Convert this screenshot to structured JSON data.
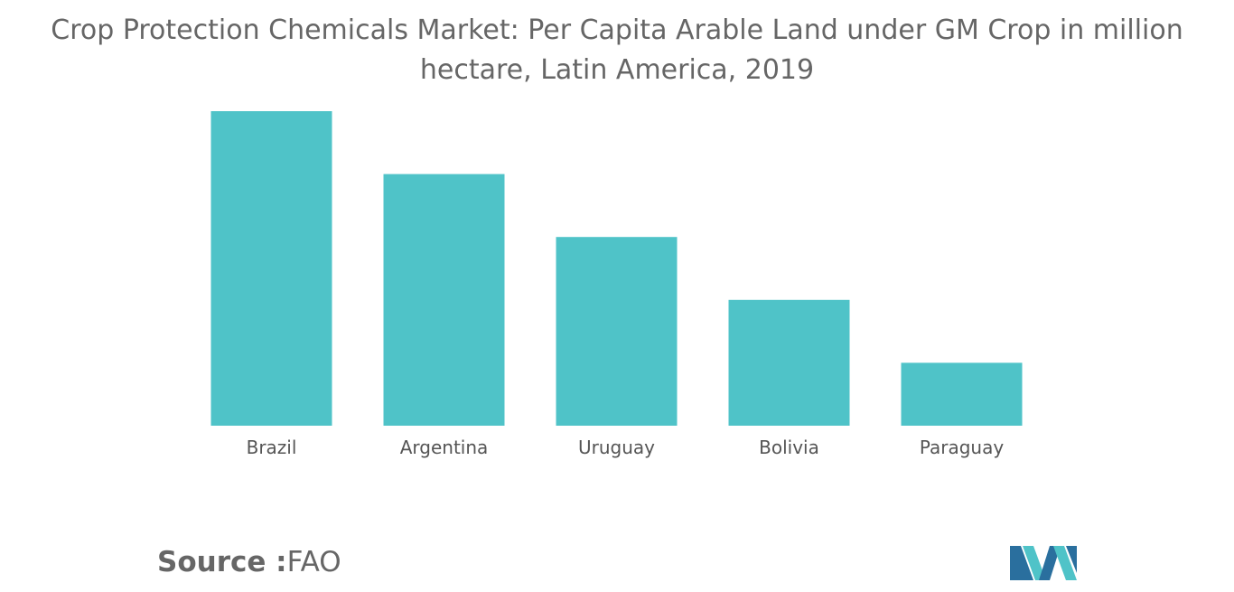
{
  "chart_data": {
    "type": "bar",
    "title": "Crop Protection Chemicals Market: Per Capita Arable Land under GM Crop in million hectare, Latin America, 2019",
    "categories": [
      "Brazil",
      "Argentina",
      "Uruguay",
      "Bolivia",
      "Paraguay"
    ],
    "values": [
      5,
      4,
      3,
      2,
      1
    ],
    "xlabel": "",
    "ylabel": "",
    "ylim": [
      0,
      5
    ],
    "grid": false,
    "legend": "none",
    "bar_color": "#4fc3c8"
  },
  "source": {
    "label": "Source :",
    "value": "FAO"
  },
  "colors": {
    "title": "#666666",
    "tick": "#555555",
    "logo_dark": "#2a6f9e",
    "logo_light": "#4fc3c8"
  }
}
